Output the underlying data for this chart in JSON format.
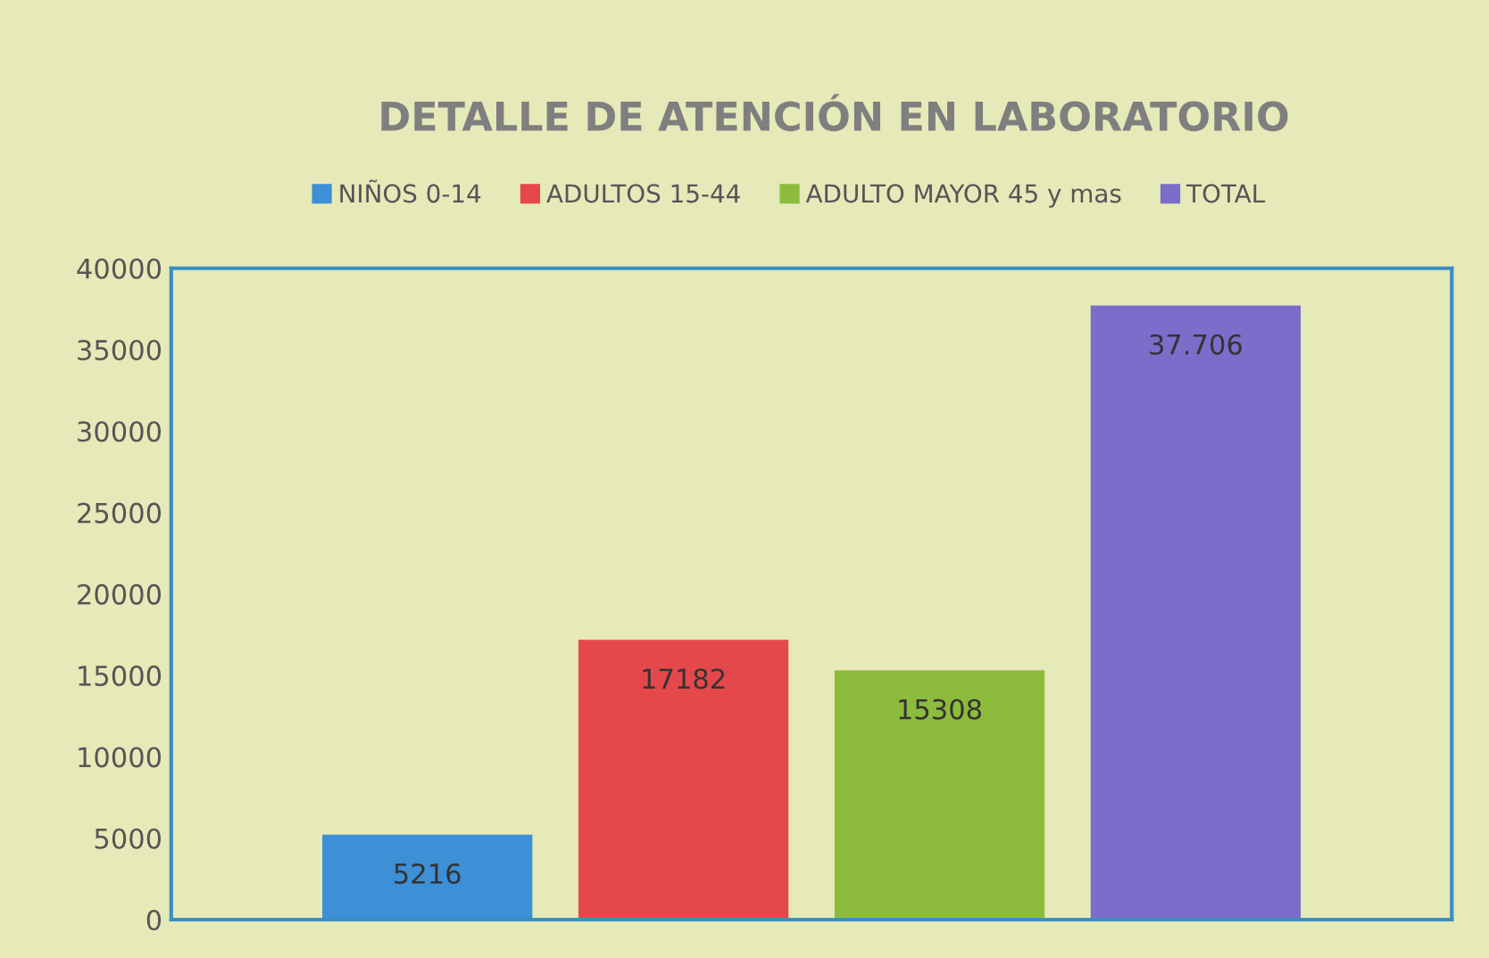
{
  "chart_data": {
    "type": "bar",
    "title": "DETALLE DE ATENCIÓN EN LABORATORIO",
    "categories": [
      null
    ],
    "series": [
      {
        "name": "NIÑOS 0-14",
        "color": "#3d8fd6",
        "values": [
          5216
        ],
        "value_labels": [
          "5216"
        ]
      },
      {
        "name": "ADULTOS 15-44",
        "color": "#e5484a",
        "values": [
          17182
        ],
        "value_labels": [
          "17182"
        ]
      },
      {
        "name": "ADULTO MAYOR 45 y mas",
        "color": "#8dbb3c",
        "values": [
          15308
        ],
        "value_labels": [
          "15308"
        ]
      },
      {
        "name": "TOTAL",
        "color": "#7b6dca",
        "values": [
          37706
        ],
        "value_labels": [
          "37.706"
        ]
      }
    ],
    "ylim": [
      0,
      40000
    ],
    "yticks": [
      0,
      5000,
      10000,
      15000,
      20000,
      25000,
      30000,
      35000,
      40000
    ],
    "grid": false,
    "legend": "top"
  }
}
